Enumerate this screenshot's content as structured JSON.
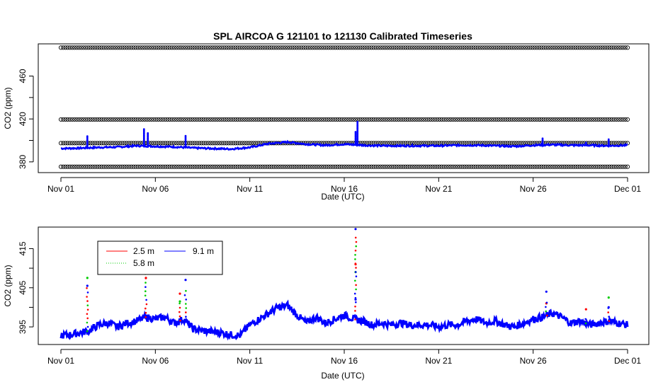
{
  "title": "SPL   AIRCOA  G    121101  to  121130   Calibrated Timeseries",
  "colors": {
    "series_2_5m": "#ff0000",
    "series_5_8m": "#00cc00",
    "series_9_1m": "#0000ff",
    "calibration": "#000000"
  },
  "chart_data": [
    {
      "type": "scatter",
      "xlabel": "Date (UTC)",
      "ylabel": "CO2 (ppm)",
      "x_ticks": [
        "Nov 01",
        "Nov 06",
        "Nov 11",
        "Nov 16",
        "Nov 21",
        "Nov 26",
        "Dec 01"
      ],
      "x_tick_days": [
        0,
        5,
        10,
        15,
        20,
        25,
        30
      ],
      "y_ticks": [
        380,
        420,
        460
      ],
      "y_ticks_minor": [
        400,
        440
      ],
      "xlim": [
        0,
        30
      ],
      "ylim": [
        370,
        490
      ],
      "grid": false,
      "calibration_levels": [
        {
          "value": 375.5,
          "marker": "open-circle"
        },
        {
          "value": 397.5,
          "marker": "open-circle"
        },
        {
          "value": 419.5,
          "marker": "open-circle"
        },
        {
          "value": 486.5,
          "marker": "open-circle"
        }
      ],
      "series": [
        {
          "color": "blue",
          "values_desc": "ambient record",
          "points": [
            [
              0,
              392.5
            ],
            [
              1,
              392.8
            ],
            [
              2,
              393.5
            ],
            [
              3,
              393.8
            ],
            [
              4,
              395.0
            ],
            [
              5,
              394.5
            ],
            [
              6,
              394.0
            ],
            [
              7,
              393.0
            ],
            [
              8,
              392.5
            ],
            [
              9,
              392.0
            ],
            [
              10,
              393.5
            ],
            [
              11,
              397.0
            ],
            [
              12,
              398.5
            ],
            [
              13,
              396.5
            ],
            [
              14,
              395.5
            ],
            [
              15,
              396.5
            ],
            [
              16,
              395.5
            ],
            [
              17,
              395.0
            ],
            [
              18,
              395.0
            ],
            [
              19,
              395.0
            ],
            [
              20,
              395.0
            ],
            [
              21,
              395.5
            ],
            [
              22,
              395.5
            ],
            [
              23,
              395.0
            ],
            [
              24,
              394.5
            ],
            [
              25,
              395.5
            ],
            [
              26,
              396.0
            ],
            [
              27,
              395.5
            ],
            [
              28,
              395.5
            ],
            [
              29,
              395.0
            ],
            [
              30,
              395.5
            ]
          ]
        }
      ],
      "spikes": [
        [
          1.4,
          405
        ],
        [
          4.4,
          411
        ],
        [
          4.6,
          407
        ],
        [
          6.6,
          405
        ],
        [
          15.7,
          418
        ],
        [
          15.6,
          408
        ],
        [
          25.5,
          402
        ],
        [
          27.8,
          399
        ],
        [
          29.0,
          401
        ]
      ]
    },
    {
      "type": "scatter",
      "xlabel": "Date (UTC)",
      "ylabel": "CO2 (ppm)",
      "x_ticks": [
        "Nov 01",
        "Nov 06",
        "Nov 11",
        "Nov 16",
        "Nov 21",
        "Nov 26",
        "Dec 01"
      ],
      "x_tick_days": [
        0,
        5,
        10,
        15,
        20,
        25,
        30
      ],
      "y_ticks": [
        395,
        405,
        415
      ],
      "y_ticks_minor": [
        400,
        410
      ],
      "xlim": [
        0,
        30
      ],
      "ylim": [
        390.5,
        420.5
      ],
      "grid": false,
      "legend": {
        "position": "top-left",
        "entries": [
          {
            "name": "2.5 m",
            "color": "#ff0000",
            "line": "solid"
          },
          {
            "name": "9.1 m",
            "color": "#0000ff",
            "line": "solid"
          },
          {
            "name": "5.8 m",
            "color": "#00cc00",
            "line": "dotted"
          }
        ]
      },
      "series": [
        {
          "name": "9.1 m",
          "points": [
            [
              0,
              392.8
            ],
            [
              0.5,
              393.0
            ],
            [
              1,
              393.5
            ],
            [
              1.5,
              394.0
            ],
            [
              2,
              395.5
            ],
            [
              2.5,
              396.0
            ],
            [
              3,
              395.0
            ],
            [
              3.5,
              396.0
            ],
            [
              4,
              396.5
            ],
            [
              4.5,
              397.5
            ],
            [
              5,
              397.0
            ],
            [
              5.5,
              397.5
            ],
            [
              6,
              396.0
            ],
            [
              6.5,
              397.0
            ],
            [
              7,
              394.5
            ],
            [
              7.5,
              394.0
            ],
            [
              8,
              393.8
            ],
            [
              8.5,
              393.5
            ],
            [
              9,
              393.0
            ],
            [
              9.5,
              392.8
            ],
            [
              10,
              395.5
            ],
            [
              10.5,
              397.0
            ],
            [
              11,
              398.5
            ],
            [
              11.5,
              400.0
            ],
            [
              12,
              400.5
            ],
            [
              12.5,
              398.0
            ],
            [
              13,
              396.0
            ],
            [
              13.5,
              397.5
            ],
            [
              14,
              396.0
            ],
            [
              14.5,
              397.0
            ],
            [
              15,
              398.0
            ],
            [
              15.5,
              397.0
            ],
            [
              16,
              396.5
            ],
            [
              16.5,
              395.5
            ],
            [
              17,
              396.0
            ],
            [
              17.5,
              395.5
            ],
            [
              18,
              396.0
            ],
            [
              18.5,
              395.5
            ],
            [
              19,
              395.5
            ],
            [
              19.5,
              395.5
            ],
            [
              20,
              395.0
            ],
            [
              20.5,
              395.5
            ],
            [
              21,
              395.5
            ],
            [
              21.5,
              396.5
            ],
            [
              22,
              397.0
            ],
            [
              22.5,
              396.0
            ],
            [
              23,
              396.5
            ],
            [
              23.5,
              395.5
            ],
            [
              24,
              395.0
            ],
            [
              24.5,
              396.0
            ],
            [
              25,
              397.0
            ],
            [
              25.5,
              397.5
            ],
            [
              26,
              398.5
            ],
            [
              26.5,
              397.5
            ],
            [
              27,
              396.0
            ],
            [
              27.5,
              396.5
            ],
            [
              28,
              395.5
            ],
            [
              28.5,
              396.0
            ],
            [
              29,
              396.5
            ],
            [
              29.5,
              396.0
            ],
            [
              30,
              395.5
            ]
          ]
        }
      ],
      "spikes": [
        {
          "day": 1.4,
          "peaks": [
            [
              407.5,
              "#00cc00"
            ],
            [
              405.5,
              "#0000ff"
            ]
          ]
        },
        {
          "day": 4.5,
          "peaks": [
            [
              413.5,
              "#00cc00"
            ],
            [
              410.5,
              "#0000ff"
            ],
            [
              407.5,
              "#ff0000"
            ]
          ]
        },
        {
          "day": 6.3,
          "peaks": [
            [
              403.5,
              "#ff0000"
            ],
            [
              401.5,
              "#00cc00"
            ]
          ]
        },
        {
          "day": 6.6,
          "peaks": [
            [
              407.0,
              "#0000ff"
            ]
          ]
        },
        {
          "day": 15.6,
          "peaks": [
            [
              420.0,
              "#0000ff"
            ],
            [
              411.0,
              "#ff0000"
            ],
            [
              409.0,
              "#00cc00"
            ],
            [
              402.0,
              "#0000ff"
            ]
          ]
        },
        {
          "day": 25.7,
          "peaks": [
            [
              404.0,
              "#0000ff"
            ],
            [
              401.0,
              "#ff0000"
            ]
          ]
        },
        {
          "day": 27.8,
          "peaks": [
            [
              399.5,
              "#ff0000"
            ]
          ]
        },
        {
          "day": 29.0,
          "peaks": [
            [
              402.5,
              "#00cc00"
            ],
            [
              400.0,
              "#0000ff"
            ]
          ]
        }
      ]
    }
  ]
}
